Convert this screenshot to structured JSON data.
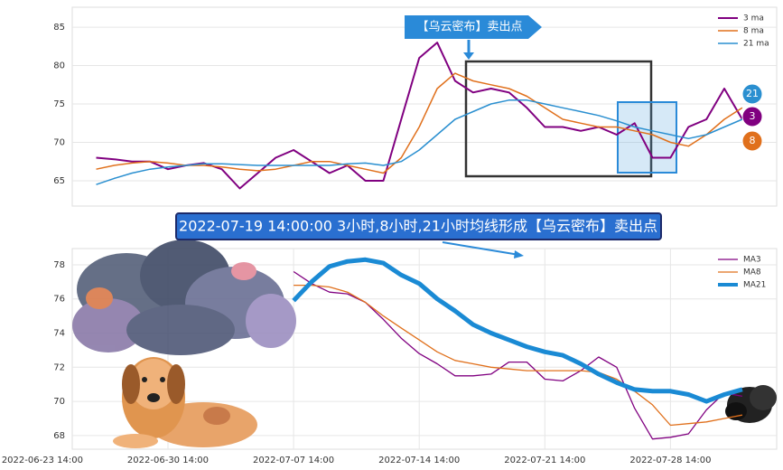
{
  "chart_data": [
    {
      "type": "line",
      "x": [
        "2022-06-26 14:00",
        "2022-06-27 14:00",
        "2022-06-28 14:00",
        "2022-06-29 14:00",
        "2022-06-30 14:00",
        "2022-07-01 14:00",
        "2022-07-02 14:00",
        "2022-07-03 14:00",
        "2022-07-04 14:00",
        "2022-07-05 14:00",
        "2022-07-06 14:00",
        "2022-07-07 14:00",
        "2022-07-08 14:00",
        "2022-07-09 14:00",
        "2022-07-10 14:00",
        "2022-07-11 14:00",
        "2022-07-12 14:00",
        "2022-07-13 14:00",
        "2022-07-14 14:00",
        "2022-07-15 14:00",
        "2022-07-16 14:00",
        "2022-07-17 14:00",
        "2022-07-18 14:00",
        "2022-07-19 14:00",
        "2022-07-20 14:00",
        "2022-07-21 14:00",
        "2022-07-22 14:00",
        "2022-07-23 14:00",
        "2022-07-24 14:00",
        "2022-07-25 14:00",
        "2022-07-26 14:00",
        "2022-07-27 14:00",
        "2022-07-28 14:00",
        "2022-07-29 14:00",
        "2022-07-30 14:00",
        "2022-07-31 14:00",
        "2022-08-01 14:00"
      ],
      "series": [
        {
          "name": "3 ma",
          "color": "#800080",
          "width": 2,
          "values": [
            68,
            67.8,
            67.5,
            67.5,
            66.5,
            67,
            67.3,
            66.5,
            64,
            66,
            68,
            69,
            67.5,
            66,
            67,
            65,
            65,
            73,
            81,
            83,
            78,
            76.5,
            77,
            76.5,
            74.5,
            72,
            72,
            71.5,
            72,
            71,
            72.5,
            68,
            68,
            72,
            73,
            77,
            73
          ]
        },
        {
          "name": "8 ma",
          "color": "#e0701c",
          "width": 1.5,
          "values": [
            66.5,
            67,
            67.3,
            67.5,
            67.3,
            67,
            67,
            66.8,
            66.5,
            66.3,
            66.5,
            67,
            67.5,
            67.5,
            67,
            66.5,
            66,
            68,
            72,
            77,
            79,
            78,
            77.5,
            77,
            76,
            74.5,
            73,
            72.5,
            72,
            72,
            71.5,
            71,
            70,
            69.5,
            71,
            73,
            74.5
          ]
        },
        {
          "name": "21 ma",
          "color": "#2a8fd0",
          "width": 1.5,
          "values": [
            64.5,
            65.3,
            66,
            66.5,
            66.8,
            67,
            67.2,
            67.2,
            67.1,
            67,
            67,
            67,
            67,
            67,
            67.2,
            67.3,
            67,
            67.5,
            69,
            71,
            73,
            74,
            75,
            75.5,
            75.5,
            75,
            74.5,
            74,
            73.5,
            72.8,
            72,
            71.5,
            71,
            70.5,
            71,
            72,
            73
          ]
        }
      ],
      "xlim": [
        "2022-06-25 06:00",
        "2022-08-03 12:00"
      ],
      "ylim": [
        61.7,
        87.6
      ],
      "yticks": [
        65,
        70,
        75,
        80,
        85
      ],
      "grid": true,
      "legend": "upper right",
      "annotation": "【乌云密布】卖出点",
      "end_labels": [
        "21",
        "3",
        "8"
      ]
    },
    {
      "type": "line",
      "x": [
        "2022-07-07 14:00",
        "2022-07-08 14:00",
        "2022-07-09 14:00",
        "2022-07-10 14:00",
        "2022-07-11 14:00",
        "2022-07-12 14:00",
        "2022-07-13 14:00",
        "2022-07-14 14:00",
        "2022-07-15 14:00",
        "2022-07-16 14:00",
        "2022-07-17 14:00",
        "2022-07-18 14:00",
        "2022-07-19 14:00",
        "2022-07-20 14:00",
        "2022-07-21 14:00",
        "2022-07-22 14:00",
        "2022-07-23 14:00",
        "2022-07-24 14:00",
        "2022-07-25 14:00",
        "2022-07-26 14:00",
        "2022-07-27 14:00",
        "2022-07-28 14:00",
        "2022-07-29 14:00",
        "2022-07-30 14:00",
        "2022-07-31 14:00",
        "2022-08-01 14:00"
      ],
      "series": [
        {
          "name": "MA3",
          "color": "#800080",
          "width": 1.3,
          "values": [
            77.6,
            76.9,
            76.4,
            76.3,
            75.8,
            74.8,
            73.7,
            72.8,
            72.2,
            71.5,
            71.5,
            71.6,
            72.3,
            72.3,
            71.3,
            71.2,
            71.8,
            72.6,
            72.0,
            69.6,
            67.8,
            67.9,
            68.1,
            69.5,
            70.5,
            70.3
          ]
        },
        {
          "name": "MA8",
          "color": "#e0701c",
          "width": 1.3,
          "values": [
            76.8,
            76.8,
            76.7,
            76.4,
            75.8,
            75.0,
            74.3,
            73.6,
            72.9,
            72.4,
            72.2,
            72.0,
            71.9,
            71.8,
            71.8,
            71.8,
            71.8,
            71.7,
            71.3,
            70.6,
            69.8,
            68.6,
            68.7,
            68.8,
            69.0,
            69.2
          ]
        },
        {
          "name": "MA21",
          "color": "#1a8ad4",
          "width": 5,
          "values": [
            75.9,
            77.0,
            77.9,
            78.2,
            78.3,
            78.1,
            77.4,
            76.9,
            76.0,
            75.3,
            74.5,
            74.0,
            73.6,
            73.2,
            72.9,
            72.7,
            72.2,
            71.6,
            71.1,
            70.7,
            70.6,
            70.6,
            70.4,
            70.0,
            70.4,
            70.7
          ]
        }
      ],
      "xlim": [
        "2022-06-25 06:00",
        "2022-08-03 12:00"
      ],
      "xticks": [
        "2022-06-23 14:00",
        "2022-06-30 14:00",
        "2022-07-07 14:00",
        "2022-07-14 14:00",
        "2022-07-21 14:00",
        "2022-07-28 14:00"
      ],
      "ylim": [
        67.2,
        78.95
      ],
      "yticks": [
        68,
        70,
        72,
        74,
        76,
        78
      ],
      "grid": true,
      "legend": "upper right",
      "annotation": "2022-07-19 14:00:00 3小时,8小时,21小时均线形成【乌云密布】卖出点"
    }
  ]
}
